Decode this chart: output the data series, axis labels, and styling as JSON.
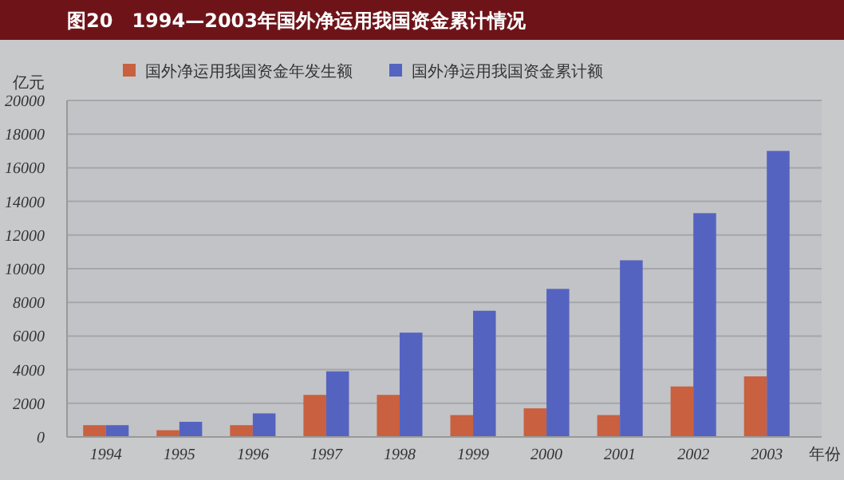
{
  "chart_data": {
    "type": "bar",
    "title": "图20　1994—2003年国外净运用我国资金累计情况",
    "ylabel": "亿元",
    "xlabel": "年份",
    "categories": [
      "1994",
      "1995",
      "1996",
      "1997",
      "1998",
      "1999",
      "2000",
      "2001",
      "2002",
      "2003"
    ],
    "series": [
      {
        "name": "国外净运用我国资金年发生额",
        "color": "#c9603f",
        "values": [
          700,
          400,
          700,
          2500,
          2500,
          1300,
          1700,
          1300,
          3000,
          3600
        ]
      },
      {
        "name": "国外净运用我国资金累计额",
        "color": "#5563c0",
        "values": [
          700,
          900,
          1400,
          3900,
          6200,
          7500,
          8800,
          10500,
          13300,
          17000
        ]
      }
    ],
    "ylim": [
      0,
      20000
    ],
    "yticks": [
      0,
      2000,
      4000,
      6000,
      8000,
      10000,
      12000,
      14000,
      16000,
      18000,
      20000
    ],
    "grid": "y",
    "legend": "top"
  }
}
